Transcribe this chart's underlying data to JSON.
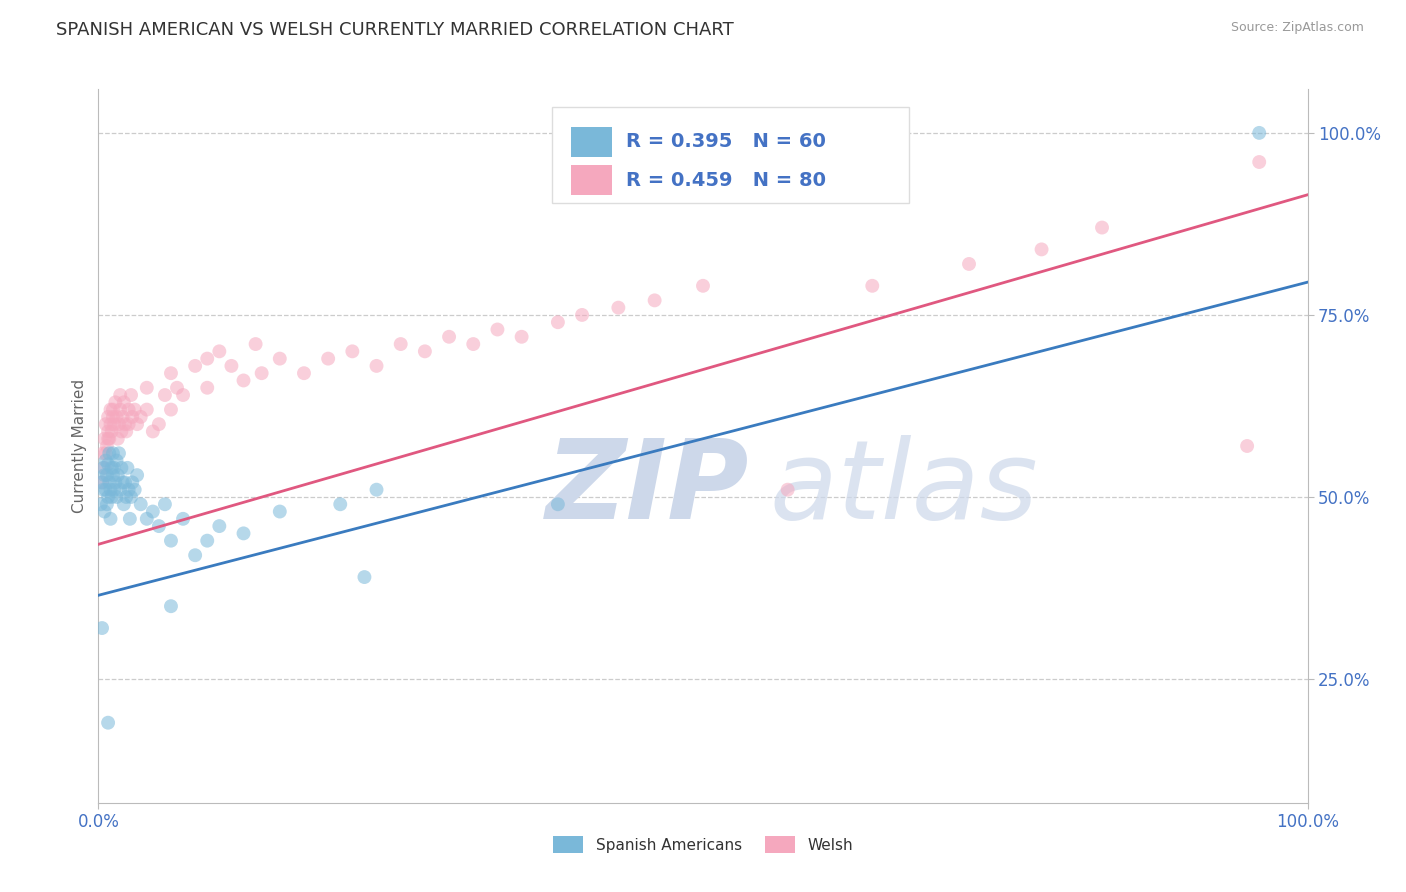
{
  "title": "SPANISH AMERICAN VS WELSH CURRENTLY MARRIED CORRELATION CHART",
  "source_text": "Source: ZipAtlas.com",
  "ylabel": "Currently Married",
  "xlim": [
    0.0,
    1.0
  ],
  "ylim": [
    0.08,
    1.06
  ],
  "xtick_labels": [
    "0.0%",
    "100.0%"
  ],
  "ytick_labels": [
    "25.0%",
    "50.0%",
    "75.0%",
    "100.0%"
  ],
  "ytick_positions": [
    0.25,
    0.5,
    0.75,
    1.0
  ],
  "blue_R": 0.395,
  "blue_N": 60,
  "pink_R": 0.459,
  "pink_N": 80,
  "legend_label_blue": "Spanish Americans",
  "legend_label_pink": "Welsh",
  "blue_color": "#7ab8d9",
  "pink_color": "#f5a8be",
  "line_blue": "#3a7bbf",
  "line_pink": "#e05880",
  "watermark_color": "#cdd8ea",
  "background_color": "#ffffff",
  "grid_color": "#cccccc",
  "title_color": "#333333",
  "axis_label_color": "#4472c4",
  "legend_r_color": "#4472c4",
  "blue_line_start_y": 0.365,
  "blue_line_end_y": 0.795,
  "pink_line_start_y": 0.435,
  "pink_line_end_y": 0.915
}
